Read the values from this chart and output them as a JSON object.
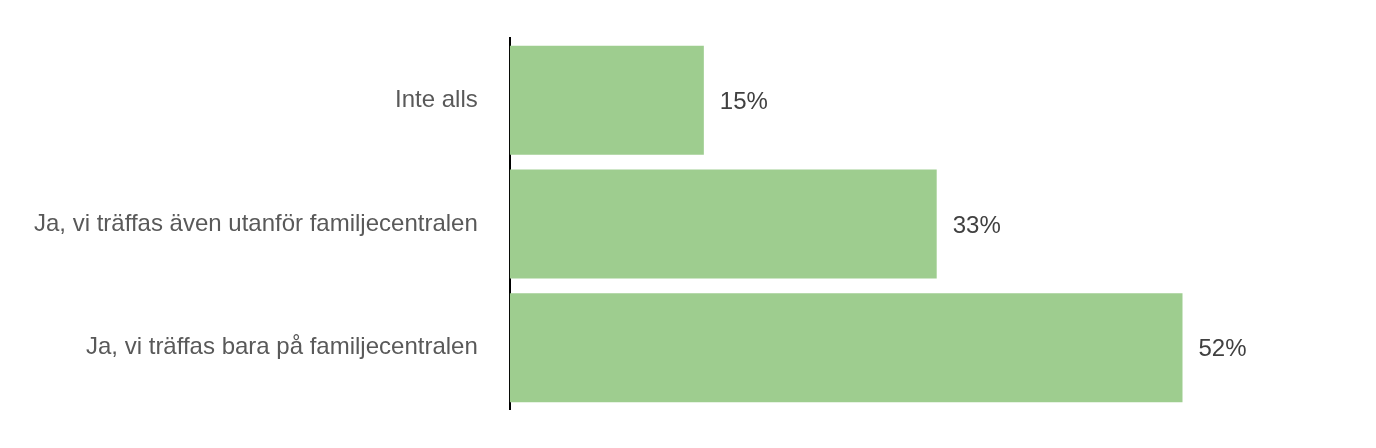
{
  "chart_data": {
    "type": "bar",
    "orientation": "horizontal",
    "categories": [
      "Inte alls",
      "Ja, vi träffas även utanför familjecentralen",
      "Ja, vi träffas bara på familjecentralen"
    ],
    "values": [
      15,
      33,
      52
    ],
    "value_labels": [
      "15%",
      "33%",
      "52%"
    ],
    "color": "#9ecd8f",
    "tick_labels": "y"
  }
}
